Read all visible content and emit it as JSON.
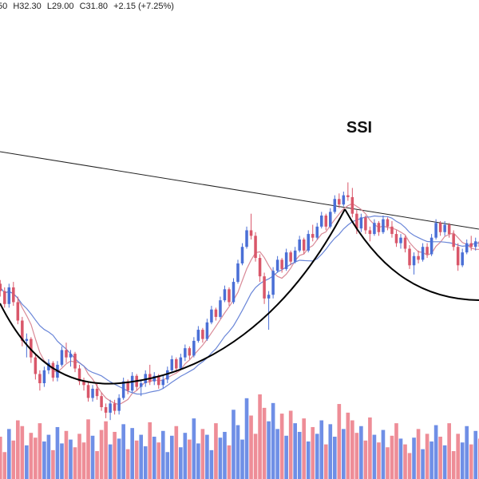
{
  "header": {
    "open_text": "50",
    "high_text": "H32.30",
    "low_text": "L29.00",
    "close_text": "C31.80",
    "change_text": "+2.15 (+7.25%)"
  },
  "chart_data": {
    "type": "candlestick",
    "title": "SSI",
    "ylim": [
      24,
      50
    ],
    "colors": {
      "up": "#4a6fd6",
      "down": "#d9576a",
      "ma_fast": "#d98a97",
      "ma_slow": "#6a86d8",
      "pattern": "#000000",
      "trendline": "#222222",
      "vol_up": "#6f8fe6",
      "vol_down": "#ee8d97"
    },
    "candles": [
      [
        35.0,
        35.2,
        34.3,
        34.6
      ],
      [
        34.6,
        34.8,
        33.9,
        34.2
      ],
      [
        34.2,
        34.4,
        33.3,
        33.5
      ],
      [
        33.5,
        34.6,
        33.3,
        34.4
      ],
      [
        34.4,
        34.7,
        33.4,
        33.6
      ],
      [
        33.6,
        33.9,
        32.4,
        32.6
      ],
      [
        32.6,
        32.8,
        31.2,
        31.5
      ],
      [
        31.5,
        31.9,
        30.6,
        31.6
      ],
      [
        31.6,
        31.7,
        30.3,
        30.6
      ],
      [
        30.6,
        30.8,
        29.4,
        29.7
      ],
      [
        29.7,
        29.9,
        28.8,
        29.2
      ],
      [
        29.2,
        30.1,
        29.0,
        29.9
      ],
      [
        29.9,
        30.5,
        29.7,
        30.3
      ],
      [
        30.3,
        30.4,
        29.3,
        29.5
      ],
      [
        29.5,
        30.4,
        29.3,
        30.2
      ],
      [
        30.2,
        31.2,
        30.1,
        31.0
      ],
      [
        31.0,
        31.4,
        30.3,
        30.6
      ],
      [
        30.6,
        31.0,
        30.1,
        30.8
      ],
      [
        30.8,
        30.9,
        29.8,
        30.0
      ],
      [
        30.0,
        30.2,
        29.1,
        29.3
      ],
      [
        29.3,
        29.5,
        28.8,
        29.1
      ],
      [
        29.1,
        29.3,
        28.2,
        28.4
      ],
      [
        28.4,
        29.1,
        28.2,
        28.9
      ],
      [
        28.9,
        29.2,
        28.3,
        28.5
      ],
      [
        28.5,
        28.7,
        27.7,
        27.9
      ],
      [
        27.9,
        28.1,
        27.3,
        27.6
      ],
      [
        27.6,
        28.3,
        27.2,
        28.1
      ],
      [
        28.1,
        28.3,
        27.5,
        27.7
      ],
      [
        27.7,
        28.6,
        27.5,
        28.4
      ],
      [
        28.4,
        29.5,
        28.3,
        29.3
      ],
      [
        29.3,
        29.4,
        28.6,
        28.8
      ],
      [
        28.8,
        29.8,
        28.7,
        29.6
      ],
      [
        29.6,
        29.7,
        28.8,
        29.0
      ],
      [
        29.0,
        29.4,
        28.5,
        29.2
      ],
      [
        29.2,
        29.9,
        29.0,
        29.7
      ],
      [
        29.7,
        30.2,
        29.1,
        29.3
      ],
      [
        29.3,
        29.8,
        29.1,
        29.6
      ],
      [
        29.6,
        29.7,
        28.9,
        29.1
      ],
      [
        29.1,
        29.6,
        28.9,
        29.4
      ],
      [
        29.4,
        30.1,
        29.2,
        29.9
      ],
      [
        29.9,
        30.7,
        29.8,
        30.5
      ],
      [
        30.5,
        30.6,
        29.8,
        30.0
      ],
      [
        30.0,
        30.8,
        29.9,
        30.6
      ],
      [
        30.6,
        31.3,
        30.4,
        31.1
      ],
      [
        31.1,
        31.2,
        30.5,
        30.7
      ],
      [
        30.7,
        31.7,
        30.6,
        31.5
      ],
      [
        31.5,
        32.3,
        31.4,
        32.1
      ],
      [
        32.1,
        32.2,
        31.4,
        31.6
      ],
      [
        31.6,
        32.7,
        31.5,
        32.5
      ],
      [
        32.5,
        33.4,
        32.4,
        33.2
      ],
      [
        33.2,
        33.3,
        32.6,
        32.8
      ],
      [
        32.8,
        33.9,
        32.7,
        33.7
      ],
      [
        33.7,
        34.5,
        33.6,
        34.3
      ],
      [
        34.3,
        34.4,
        33.4,
        33.6
      ],
      [
        33.6,
        34.9,
        33.5,
        34.7
      ],
      [
        34.7,
        35.9,
        34.6,
        35.7
      ],
      [
        35.7,
        36.8,
        35.6,
        36.6
      ],
      [
        36.6,
        37.7,
        36.5,
        37.5
      ],
      [
        37.5,
        38.4,
        37.0,
        37.2
      ],
      [
        37.2,
        37.4,
        35.8,
        36.0
      ],
      [
        36.0,
        36.2,
        34.7,
        35.0
      ],
      [
        35.0,
        35.2,
        33.5,
        33.8
      ],
      [
        33.8,
        34.2,
        32.1,
        34.0
      ],
      [
        34.0,
        35.5,
        33.8,
        35.3
      ],
      [
        35.3,
        36.1,
        35.2,
        35.9
      ],
      [
        35.9,
        36.0,
        35.2,
        35.4
      ],
      [
        35.4,
        36.5,
        35.3,
        36.3
      ],
      [
        36.3,
        36.4,
        35.6,
        35.8
      ],
      [
        35.8,
        36.6,
        35.7,
        36.4
      ],
      [
        36.4,
        37.2,
        36.3,
        37.0
      ],
      [
        37.0,
        37.1,
        36.2,
        36.4
      ],
      [
        36.4,
        37.5,
        36.3,
        37.3
      ],
      [
        37.3,
        37.8,
        36.9,
        37.1
      ],
      [
        37.1,
        37.9,
        37.0,
        37.7
      ],
      [
        37.7,
        38.5,
        37.6,
        38.3
      ],
      [
        38.3,
        38.4,
        37.5,
        37.7
      ],
      [
        37.7,
        38.7,
        37.6,
        38.5
      ],
      [
        38.5,
        39.4,
        38.4,
        39.2
      ],
      [
        39.2,
        39.5,
        38.7,
        38.9
      ],
      [
        38.9,
        39.6,
        38.8,
        39.4
      ],
      [
        39.4,
        40.1,
        39.1,
        39.3
      ],
      [
        39.3,
        39.8,
        38.2,
        38.4
      ],
      [
        38.4,
        38.6,
        37.3,
        37.6
      ],
      [
        37.6,
        38.4,
        37.4,
        38.2
      ],
      [
        38.2,
        38.3,
        37.3,
        37.5
      ],
      [
        37.5,
        37.7,
        36.9,
        37.3
      ],
      [
        37.3,
        38.1,
        37.2,
        37.9
      ],
      [
        37.9,
        38.0,
        37.2,
        37.4
      ],
      [
        37.4,
        38.3,
        37.3,
        38.1
      ],
      [
        38.1,
        38.2,
        37.5,
        37.7
      ],
      [
        37.7,
        38.0,
        37.1,
        37.3
      ],
      [
        37.3,
        37.5,
        36.6,
        36.8
      ],
      [
        36.8,
        37.3,
        36.5,
        37.1
      ],
      [
        37.1,
        37.2,
        36.3,
        36.5
      ],
      [
        36.5,
        36.7,
        35.4,
        35.6
      ],
      [
        35.6,
        36.3,
        35.1,
        36.1
      ],
      [
        36.1,
        36.4,
        35.7,
        35.9
      ],
      [
        35.9,
        36.8,
        35.8,
        36.6
      ],
      [
        36.6,
        36.8,
        36.0,
        36.2
      ],
      [
        36.2,
        37.3,
        36.1,
        37.1
      ],
      [
        37.1,
        38.1,
        37.0,
        37.9
      ],
      [
        37.9,
        38.0,
        37.2,
        37.4
      ],
      [
        37.4,
        38.0,
        37.2,
        37.8
      ],
      [
        37.8,
        37.9,
        37.1,
        37.3
      ],
      [
        37.3,
        37.5,
        36.4,
        36.6
      ],
      [
        36.6,
        36.8,
        35.3,
        35.6
      ],
      [
        35.6,
        36.5,
        35.5,
        36.3
      ],
      [
        36.3,
        37.0,
        36.2,
        36.8
      ],
      [
        36.8,
        37.2,
        36.4,
        36.6
      ],
      [
        36.6,
        37.1,
        36.4,
        36.9
      ],
      [
        36.9,
        37.3,
        36.4,
        36.6
      ]
    ],
    "volume": [
      32,
      44,
      28,
      52,
      40,
      61,
      55,
      35,
      48,
      43,
      58,
      39,
      46,
      30,
      54,
      37,
      50,
      41,
      33,
      47,
      38,
      62,
      45,
      29,
      51,
      60,
      36,
      49,
      42,
      57,
      31,
      53,
      40,
      46,
      34,
      59,
      44,
      38,
      50,
      28,
      45,
      55,
      33,
      48,
      41,
      63,
      37,
      52,
      46,
      30,
      58,
      43,
      49,
      35,
      72,
      56,
      41,
      84,
      66,
      47,
      88,
      74,
      60,
      79,
      52,
      68,
      45,
      71,
      58,
      49,
      63,
      39,
      54,
      47,
      61,
      36,
      57,
      44,
      78,
      52,
      69,
      61,
      48,
      55,
      40,
      64,
      46,
      38,
      51,
      33,
      45,
      58,
      42,
      36,
      27,
      43,
      52,
      31,
      47,
      39,
      56,
      44,
      35,
      58,
      29,
      47,
      38,
      55,
      36,
      50,
      42
    ]
  }
}
